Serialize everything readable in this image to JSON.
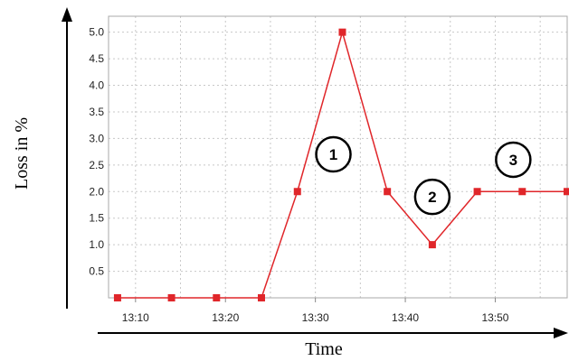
{
  "chart_data": {
    "type": "line",
    "xlabel": "Time",
    "ylabel": "Loss in %",
    "x_tick_labels": [
      "13:10",
      "13:20",
      "13:30",
      "13:40",
      "13:50"
    ],
    "y_tick_labels": [
      "0.5",
      "1.0",
      "1.5",
      "2.0",
      "2.5",
      "3.0",
      "3.5",
      "4.0",
      "4.5",
      "5.0"
    ],
    "xlim": [
      "13:07",
      "13:58"
    ],
    "ylim": [
      0,
      5.3
    ],
    "grid": true,
    "line_color": "#e0262a",
    "marker_color": "#e0262a",
    "marker": "square",
    "series": [
      {
        "x": [
          "13:08",
          "13:14",
          "13:19",
          "13:24",
          "13:28",
          "13:33",
          "13:38",
          "13:43",
          "13:48",
          "13:53",
          "13:58"
        ],
        "y": [
          0,
          0,
          0,
          0,
          2.0,
          5.0,
          2.0,
          1.0,
          2.0,
          2.0,
          2.0
        ]
      }
    ],
    "annotations": [
      {
        "text": "1",
        "x": "13:32",
        "y": 2.7
      },
      {
        "text": "2",
        "x": "13:43",
        "y": 1.9
      },
      {
        "text": "3",
        "x": "13:52",
        "y": 2.6
      }
    ]
  }
}
